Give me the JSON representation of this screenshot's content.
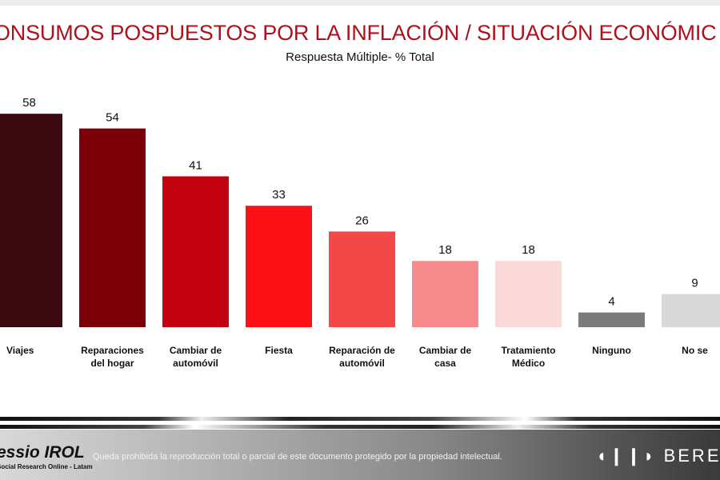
{
  "chart_data": {
    "type": "bar",
    "title": "CONSUMOS POSPUESTOS POR LA INFLACIÓN / SITUACIÓN ECONÓMICA",
    "visible_title": "ONSUMOS POSPUESTOS POR LA INFLACIÓN / SITUACIÓN ECONÓMIC",
    "subtitle": "Respuesta Múltiple-  % Total",
    "categories": [
      "Viajes",
      "Reparaciones del hogar",
      "Cambiar de automóvil",
      "Fiesta",
      "Reparación de automóvil",
      "Cambiar de casa",
      "Tratamiento Médico",
      "Ninguno",
      "No se"
    ],
    "category_lines": [
      [
        "Viajes"
      ],
      [
        "Reparaciones",
        "del hogar"
      ],
      [
        "Cambiar de",
        "automóvil"
      ],
      [
        "Fiesta"
      ],
      [
        "Reparación de",
        "automóvil"
      ],
      [
        "Cambiar de",
        "casa"
      ],
      [
        "Tratamiento",
        "Médico"
      ],
      [
        "Ninguno"
      ],
      [
        "No se"
      ]
    ],
    "values": [
      58,
      54,
      41,
      33,
      26,
      18,
      18,
      4,
      9
    ],
    "colors": [
      "#3b0910",
      "#7c0008",
      "#c2000f",
      "#fb1016",
      "#f24848",
      "#f68a8c",
      "#fbd9d9",
      "#7b7b7b",
      "#d9d9d9"
    ],
    "ylim": [
      0,
      62
    ],
    "grid": false,
    "legend": "none",
    "data_labels": true
  },
  "footer": {
    "logo_left": "essio IROL",
    "logo_left_tagline": "Social Research Online - Latam",
    "disclaimer": "Queda prohibida la reproducción total o parcial de este documento protegido por la propiedad intelectual.",
    "logo_right": "BERENS"
  }
}
